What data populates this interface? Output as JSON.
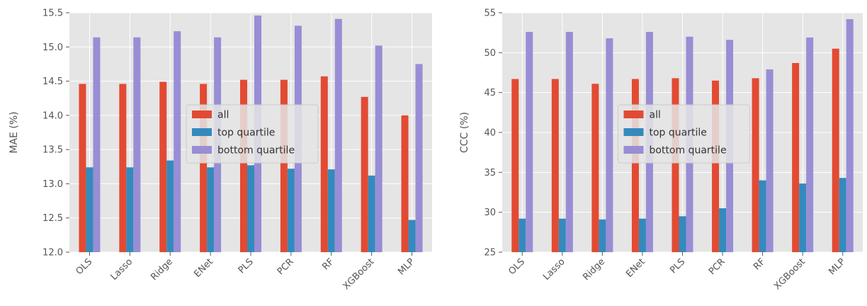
{
  "colors": {
    "all": "#E24A33",
    "top": "#348ABD",
    "bottom": "#988ED5",
    "panel_bg": "#E5E5E5",
    "grid": "#FFFFFF"
  },
  "chart_data": [
    {
      "type": "bar",
      "title": "",
      "xlabel": "",
      "ylabel": "MAE (%)",
      "ylim": [
        12.0,
        15.5
      ],
      "yticks": [
        12.0,
        12.5,
        13.0,
        13.5,
        14.0,
        14.5,
        15.0,
        15.5
      ],
      "ytick_labels": [
        "12.0",
        "12.5",
        "13.0",
        "13.5",
        "14.0",
        "14.5",
        "15.0",
        "15.5"
      ],
      "grid": true,
      "legend_position": "center",
      "categories": [
        "OLS",
        "Lasso",
        "Ridge",
        "ENet",
        "PLS",
        "PCR",
        "RF",
        "XGBoost",
        "MLP"
      ],
      "series": [
        {
          "name": "all",
          "color": "#E24A33",
          "values": [
            14.46,
            14.46,
            14.49,
            14.46,
            14.52,
            14.52,
            14.57,
            14.27,
            14.0
          ]
        },
        {
          "name": "top quartile",
          "color": "#348ABD",
          "values": [
            13.24,
            13.24,
            13.34,
            13.24,
            13.27,
            13.22,
            13.21,
            13.12,
            12.47
          ]
        },
        {
          "name": "bottom quartile",
          "color": "#988ED5",
          "values": [
            15.14,
            15.14,
            15.23,
            15.14,
            15.46,
            15.31,
            15.41,
            15.02,
            14.75
          ]
        }
      ]
    },
    {
      "type": "bar",
      "title": "",
      "xlabel": "",
      "ylabel": "CCC (%)",
      "ylim": [
        25,
        55
      ],
      "yticks": [
        25,
        30,
        35,
        40,
        45,
        50,
        55
      ],
      "ytick_labels": [
        "25",
        "30",
        "35",
        "40",
        "45",
        "50",
        "55"
      ],
      "grid": true,
      "legend_position": "center",
      "categories": [
        "OLS",
        "Lasso",
        "Ridge",
        "ENet",
        "PLS",
        "PCR",
        "RF",
        "XGBoost",
        "MLP"
      ],
      "series": [
        {
          "name": "all",
          "color": "#E24A33",
          "values": [
            46.7,
            46.7,
            46.1,
            46.7,
            46.8,
            46.5,
            46.8,
            48.7,
            50.5
          ]
        },
        {
          "name": "top quartile",
          "color": "#348ABD",
          "values": [
            29.2,
            29.2,
            29.1,
            29.2,
            29.5,
            30.5,
            34.0,
            33.6,
            34.3
          ]
        },
        {
          "name": "bottom quartile",
          "color": "#988ED5",
          "values": [
            52.6,
            52.6,
            51.8,
            52.6,
            52.0,
            51.6,
            47.9,
            51.9,
            54.2
          ]
        }
      ]
    }
  ]
}
